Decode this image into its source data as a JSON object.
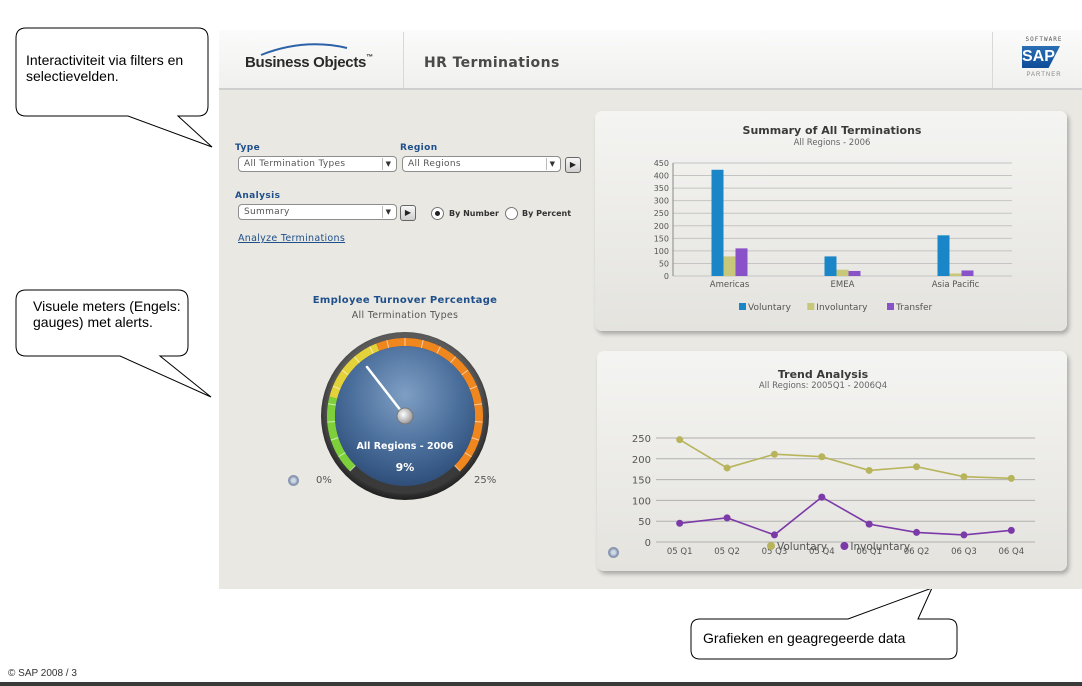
{
  "annotations": {
    "filters": "Interactiviteit via filters en selectievelden.",
    "gauges": "Visuele meters (Engels: gauges) met alerts.",
    "charts": "Grafieken en geagregeerde data"
  },
  "header": {
    "brand": "Business Objects",
    "title": "HR Terminations",
    "sap_top": "SOFTWARE",
    "sap_logo": "SAP",
    "sap_bottom": "PARTNER"
  },
  "filters": {
    "type_label": "Type",
    "type_value": "All Termination Types",
    "region_label": "Region",
    "region_value": "All Regions",
    "analysis_label": "Analysis",
    "analysis_value": "Summary",
    "radio_number": "By Number",
    "radio_percent": "By Percent",
    "selected_radio": "By Number",
    "analyze_link": "Analyze Terminations"
  },
  "gauge": {
    "title": "Employee Turnover Percentage",
    "subtitle": "All Termination Types",
    "center_label": "All Regions - 2006",
    "value_label": "9%",
    "value": 9,
    "min_label": "0%",
    "max_label": "25%",
    "min": 0,
    "max": 25,
    "colors": {
      "green": "#7dd03a",
      "yellow": "#e4d23a",
      "orange": "#f0861e",
      "face": "#3f6594"
    }
  },
  "chart_data": [
    {
      "type": "bar",
      "title": "Summary of  All Terminations",
      "subtitle": "All Regions - 2006",
      "categories": [
        "Americas",
        "EMEA",
        "Asia Pacific"
      ],
      "series": [
        {
          "name": "Voluntary",
          "color": "#1a86c8",
          "values": [
            423,
            78,
            162
          ]
        },
        {
          "name": "Involuntary",
          "color": "#c8c87a",
          "values": [
            78,
            25,
            10
          ]
        },
        {
          "name": "Transfer",
          "color": "#8a52c8",
          "values": [
            110,
            20,
            22
          ]
        }
      ],
      "ylim": [
        0,
        450
      ],
      "yticks": [
        "0",
        "50",
        "100",
        "150",
        "200",
        "250",
        "300",
        "350",
        "400",
        "450"
      ],
      "grid": true,
      "legend": "bottom"
    },
    {
      "type": "line",
      "title": "Trend Analysis",
      "subtitle": "All Regions:  2005Q1 - 2006Q4",
      "x": [
        "05 Q1",
        "05 Q2",
        "05 Q3",
        "05 Q4",
        "06 Q1",
        "06 Q2",
        "06 Q3",
        "06 Q4"
      ],
      "series": [
        {
          "name": "Voluntary",
          "color": "#b8b45c",
          "values": [
            246,
            178,
            211,
            205,
            172,
            181,
            157,
            153
          ]
        },
        {
          "name": "Involuntary",
          "color": "#7b3aa8",
          "values": [
            45,
            58,
            17,
            108,
            43,
            23,
            17,
            28
          ]
        }
      ],
      "ylim": [
        0,
        250
      ],
      "yticks": [
        "0",
        "50",
        "100",
        "150",
        "200",
        "250"
      ],
      "grid": true,
      "legend": "bottom"
    }
  ],
  "footer": {
    "copyright": "© SAP 2008 / 3"
  }
}
